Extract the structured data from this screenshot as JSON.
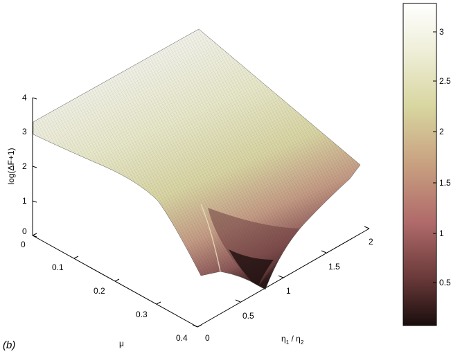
{
  "panel_label": "(b)",
  "chart_data": {
    "type": "surface",
    "zlabel": "log(ΔF+1)",
    "xlabel_base": "η",
    "xlabel_sub1": "1",
    "xlabel_mid": " / η",
    "xlabel_sub2": "2",
    "ylabel": "μ",
    "z_ticks": [
      "0",
      "1",
      "2",
      "3",
      "4"
    ],
    "x_ticks": [
      "0",
      "0.5",
      "1",
      "1.5",
      "2"
    ],
    "y_ticks": [
      "0",
      "0.1",
      "0.2",
      "0.3",
      "0.4"
    ],
    "colorbar_ticks": [
      "0.5",
      "1",
      "1.5",
      "2",
      "2.5",
      "3"
    ],
    "xlim": [
      0,
      2
    ],
    "ylim": [
      0,
      0.4
    ],
    "zlim": [
      0,
      4
    ],
    "colorbar_range": [
      0.1,
      3.3
    ],
    "colormap": [
      "#1a0d0d",
      "#6b3a3a",
      "#b06a6a",
      "#c8a080",
      "#d8d6a0",
      "#eeeed8",
      "#ffffff"
    ],
    "surface_samples": [
      {
        "eta_ratio": 0.0,
        "mu": 0.0,
        "z": 3.3
      },
      {
        "eta_ratio": 2.0,
        "mu": 0.0,
        "z": 3.15
      },
      {
        "eta_ratio": 1.0,
        "mu": 0.2,
        "z": 1.9
      },
      {
        "eta_ratio": 0.6,
        "mu": 0.4,
        "z": 0.7
      },
      {
        "eta_ratio": 0.85,
        "mu": 0.4,
        "z": 0.1
      },
      {
        "eta_ratio": 2.0,
        "mu": 0.4,
        "z": 1.9
      }
    ]
  }
}
